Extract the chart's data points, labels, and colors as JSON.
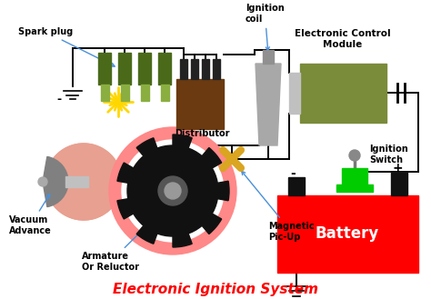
{
  "title": "Electronic Ignition System",
  "title_color": "#FF0000",
  "title_fontsize": 11,
  "bg_color": "#FFFFFF",
  "labels": {
    "spark_plug": "Spark plug",
    "distributor": "Distributor",
    "ignition_coil": "Ignition\ncoil",
    "ecm": "Electronic Control\nModule",
    "ignition_switch": "Ignition\nSwitch",
    "battery": "Battery",
    "vacuum_advance": "Vacuum\nAdvance",
    "armature": "Armature\nOr Reluctor",
    "magnetic_pickup": "Magnetic\nPic-Up"
  },
  "label_color": "#000000",
  "label_fontsize": 7,
  "arrow_color": "#4A90D9",
  "wire_color": "#000000",
  "battery_color": "#FF0000",
  "battery_text_color": "#FFFFFF",
  "ecm_color": "#7A8B3A",
  "ecm_line_color": "#5A6B2A",
  "spark_plug_color": "#4A6A1A",
  "spark_plug_tip": "#8AAF40",
  "distributor_color": "#6B3A10",
  "distributor_top": "#222222",
  "ignition_coil_color": "#A8A8A8",
  "ignition_coil_top": "#909090",
  "vacuum_body_color": "#E8A090",
  "vacuum_cap_color": "#808080",
  "vacuum_snout_color": "#C0C0C0",
  "ring_color": "#FF8888",
  "gear_color": "#111111",
  "hub_color": "#555555",
  "hub2_color": "#999999",
  "magnetic_color": "#DAA520",
  "ignition_switch_color": "#00CC00",
  "ignition_switch_stem": "#777777",
  "ignition_switch_ball": "#888888",
  "star_color": "#FFD700",
  "ground_color": "#000000",
  "wire_lw": 1.4
}
